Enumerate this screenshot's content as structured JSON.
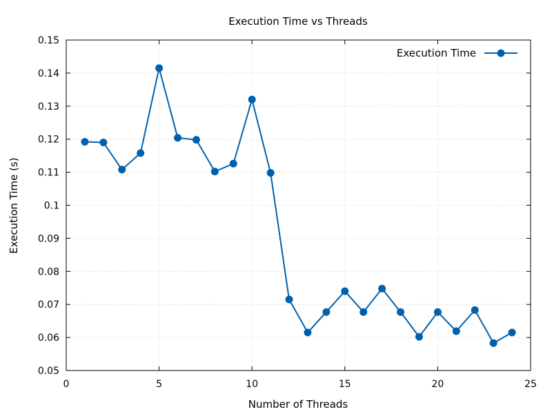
{
  "chart_data": {
    "type": "line",
    "title": "Execution Time vs Threads",
    "xlabel": "Number of Threads",
    "ylabel": "Execution Time (s)",
    "xlim": [
      0,
      25
    ],
    "ylim": [
      0.05,
      0.15
    ],
    "x_ticks": [
      "0",
      "5",
      "10",
      "15",
      "20",
      "25"
    ],
    "x_tick_values": [
      0,
      5,
      10,
      15,
      20,
      25
    ],
    "y_ticks": [
      "0.05",
      "0.06",
      "0.07",
      "0.08",
      "0.09",
      "0.1",
      "0.11",
      "0.12",
      "0.13",
      "0.14",
      "0.15"
    ],
    "y_tick_values": [
      0.05,
      0.06,
      0.07,
      0.08,
      0.09,
      0.1,
      0.11,
      0.12,
      0.13,
      0.14,
      0.15
    ],
    "grid": true,
    "legend_position": "top-right",
    "series": [
      {
        "name": "Execution Time",
        "color": "#0060ad",
        "marker": "circle",
        "x": [
          1,
          2,
          3,
          4,
          5,
          6,
          7,
          8,
          9,
          10,
          11,
          12,
          13,
          14,
          15,
          16,
          17,
          18,
          19,
          20,
          21,
          22,
          23,
          24
        ],
        "y": [
          0.1192,
          0.119,
          0.1108,
          0.1158,
          0.1415,
          0.1204,
          0.1198,
          0.1102,
          0.1126,
          0.132,
          0.1098,
          0.0715,
          0.0615,
          0.0677,
          0.074,
          0.0677,
          0.0748,
          0.0677,
          0.0602,
          0.0677,
          0.0619,
          0.0683,
          0.0583,
          0.0615
        ]
      }
    ]
  }
}
